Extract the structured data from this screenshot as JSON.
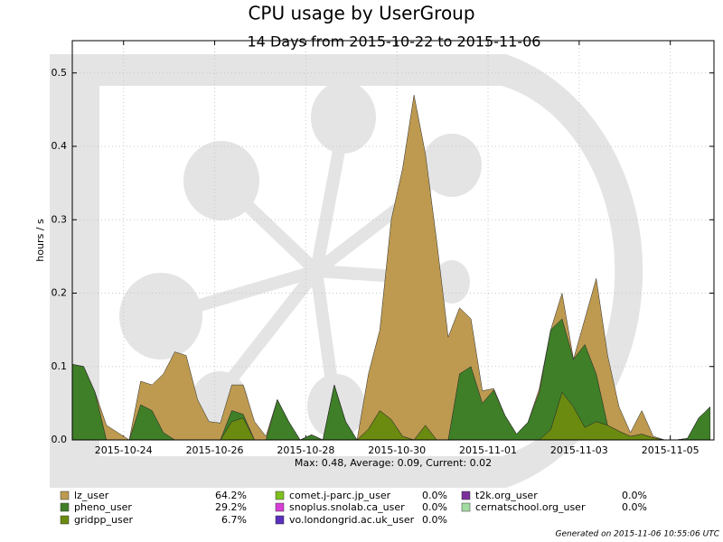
{
  "chart_data": {
    "type": "stacked-area",
    "title": "CPU usage by UserGroup",
    "subtitle": "14 Days from 2015-10-22 to 2015-11-06",
    "ylabel": "hours / s",
    "stats": "Max: 0.48, Average: 0.09, Current: 0.02",
    "footer": "Generated on 2015-11-06 10:55:06 UTC",
    "grid": true,
    "x": [
      "2015-10-22 21:00",
      "2015-10-23 03:00",
      "2015-10-23 09:00",
      "2015-10-23 15:00",
      "2015-10-23 21:00",
      "2015-10-24 03:00",
      "2015-10-24 09:00",
      "2015-10-24 15:00",
      "2015-10-24 21:00",
      "2015-10-25 03:00",
      "2015-10-25 09:00",
      "2015-10-25 15:00",
      "2015-10-25 21:00",
      "2015-10-26 03:00",
      "2015-10-26 09:00",
      "2015-10-26 15:00",
      "2015-10-26 21:00",
      "2015-10-27 03:00",
      "2015-10-27 09:00",
      "2015-10-27 15:00",
      "2015-10-27 21:00",
      "2015-10-28 03:00",
      "2015-10-28 09:00",
      "2015-10-28 15:00",
      "2015-10-28 21:00",
      "2015-10-29 03:00",
      "2015-10-29 09:00",
      "2015-10-29 15:00",
      "2015-10-29 21:00",
      "2015-10-30 03:00",
      "2015-10-30 09:00",
      "2015-10-30 15:00",
      "2015-10-30 21:00",
      "2015-10-31 03:00",
      "2015-10-31 09:00",
      "2015-10-31 15:00",
      "2015-10-31 21:00",
      "2015-11-01 03:00",
      "2015-11-01 09:00",
      "2015-11-01 15:00",
      "2015-11-01 21:00",
      "2015-11-02 03:00",
      "2015-11-02 09:00",
      "2015-11-02 15:00",
      "2015-11-02 21:00",
      "2015-11-03 03:00",
      "2015-11-03 09:00",
      "2015-11-03 15:00",
      "2015-11-03 21:00",
      "2015-11-04 03:00",
      "2015-11-04 09:00",
      "2015-11-04 15:00",
      "2015-11-04 21:00",
      "2015-11-05 03:00",
      "2015-11-05 09:00",
      "2015-11-05 15:00",
      "2015-11-05 21:00"
    ],
    "xlim": [
      "2015-10-22 21:00",
      "2015-11-05 23:00"
    ],
    "xticks": [
      "2015-10-24",
      "2015-10-26",
      "2015-10-28",
      "2015-10-30",
      "2015-11-01",
      "2015-11-03",
      "2015-11-05"
    ],
    "ylim": [
      0,
      0.544
    ],
    "yticks": [
      {
        "value": 0,
        "label": "0.0"
      },
      0.1,
      0.2,
      0.3,
      0.4,
      0.5
    ],
    "series": [
      {
        "name": "lz_user",
        "color": "#bd9a50",
        "share": 64.2,
        "share_label": "64.2%",
        "values": [
          0,
          0,
          0,
          0.02,
          0.01,
          0,
          0.032,
          0.035,
          0.08,
          0.12,
          0.115,
          0.055,
          0.025,
          0.023,
          0.035,
          0.04,
          0.025,
          0.005,
          0,
          0,
          0,
          0,
          0,
          0,
          0,
          0,
          0.075,
          0.11,
          0.272,
          0.365,
          0.47,
          0.37,
          0.27,
          0.14,
          0.09,
          0.065,
          0.017,
          0.002,
          0,
          0,
          0,
          0.005,
          0,
          0.035,
          0,
          0.035,
          0.13,
          0.095,
          0.033,
          0.005,
          0.032,
          0.002,
          0,
          0,
          0,
          0,
          0
        ]
      },
      {
        "name": "pheno_user",
        "color": "#3f7f27",
        "share": 29.2,
        "share_label": "29.2%",
        "values": [
          0.103,
          0.1,
          0.065,
          0,
          0,
          0,
          0.048,
          0.04,
          0.01,
          0,
          0,
          0,
          0,
          0,
          0.015,
          0.005,
          0,
          0,
          0.055,
          0.025,
          0,
          0.007,
          0,
          0.075,
          0.025,
          0,
          0,
          0,
          0,
          0,
          0,
          0,
          0,
          0,
          0.09,
          0.1,
          0.05,
          0.068,
          0.033,
          0.008,
          0.024,
          0.065,
          0.136,
          0.1,
          0.065,
          0.113,
          0.065,
          0,
          0,
          0,
          0,
          0,
          0,
          0,
          0.002,
          0.03,
          0.045
        ]
      },
      {
        "name": "gridpp_user",
        "color": "#6b8a10",
        "share": 6.7,
        "share_label": "6.7%",
        "values": [
          0,
          0,
          0,
          0,
          0,
          0,
          0,
          0,
          0,
          0,
          0,
          0,
          0,
          0,
          0.025,
          0.03,
          0,
          0,
          0,
          0,
          0,
          0,
          0,
          0,
          0,
          0,
          0.015,
          0.04,
          0.028,
          0.005,
          0,
          0.02,
          0,
          0,
          0,
          0,
          0,
          0,
          0,
          0,
          0,
          0,
          0.014,
          0.065,
          0.045,
          0.017,
          0.025,
          0.02,
          0.012,
          0.005,
          0.008,
          0.003,
          0,
          0,
          0,
          0,
          0
        ]
      },
      {
        "name": "comet.j-parc.jp_user",
        "color": "#7fbf1f",
        "share": 0,
        "share_label": "0.0%"
      },
      {
        "name": "snoplus.snolab.ca_user",
        "color": "#d63fd6",
        "share": 0,
        "share_label": "0.0%"
      },
      {
        "name": "vo.londongrid.ac.uk_user",
        "color": "#5b2fbf",
        "share": 0,
        "share_label": "0.0%"
      },
      {
        "name": "t2k.org_user",
        "color": "#7b2f9b",
        "share": 0,
        "share_label": "0.0%"
      },
      {
        "name": "cernatschool.org_user",
        "color": "#a3dca3",
        "share": 0,
        "share_label": "0.0%"
      }
    ]
  }
}
